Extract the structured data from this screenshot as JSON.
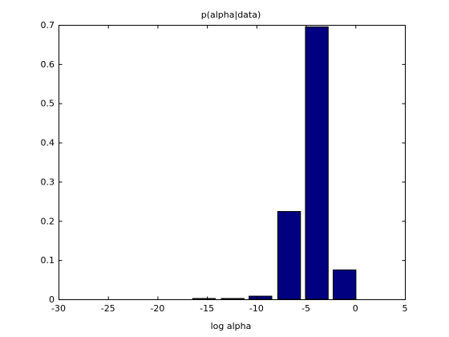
{
  "chart_data": {
    "type": "bar",
    "title": "p(alpha|data)",
    "xlabel": "log alpha",
    "ylabel": "",
    "xlim": [
      -30,
      5
    ],
    "ylim": [
      0,
      0.7
    ],
    "xticks": [
      -30,
      -25,
      -20,
      -15,
      -10,
      -5,
      0,
      5
    ],
    "yticks": [
      0,
      0.1,
      0.2,
      0.3,
      0.4,
      0.5,
      0.6,
      0.7
    ],
    "xtick_labels": [
      "-30",
      "-25",
      "-20",
      "-15",
      "-10",
      "-5",
      "0",
      "5"
    ],
    "ytick_labels": [
      "0",
      "0.1",
      "0.2",
      "0.3",
      "0.4",
      "0.5",
      "0.6",
      "0.7"
    ],
    "bar_width": 2.3,
    "bar_color": "#000080",
    "bars": [
      {
        "x": -15.3,
        "value": 0.002
      },
      {
        "x": -12.4,
        "value": 0.002
      },
      {
        "x": -9.6,
        "value": 0.008
      },
      {
        "x": -6.7,
        "value": 0.224
      },
      {
        "x": -3.9,
        "value": 0.695
      },
      {
        "x": -1.1,
        "value": 0.075
      }
    ],
    "grid": false,
    "legend": "none"
  }
}
